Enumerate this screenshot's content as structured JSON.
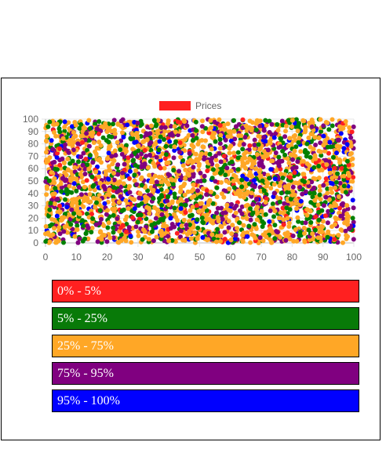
{
  "chart_data": {
    "type": "scatter",
    "title": "",
    "legend": {
      "label": "Prices",
      "color": "#ff2020",
      "position": "top"
    },
    "xlim": [
      0,
      100
    ],
    "ylim": [
      0,
      100
    ],
    "xticks": [
      "0",
      "10",
      "20",
      "30",
      "40",
      "50",
      "60",
      "70",
      "80",
      "90",
      "100"
    ],
    "yticks": [
      "0",
      "10",
      "20",
      "30",
      "40",
      "50",
      "60",
      "70",
      "80",
      "90",
      "100"
    ],
    "grid": true,
    "point_colors": [
      "#ff2020",
      "#008000",
      "#ffa726",
      "#800080",
      "#0000ff"
    ],
    "point_mix": [
      0.05,
      0.2,
      0.5,
      0.2,
      0.05
    ],
    "point_count_estimate": 3000,
    "x_distribution": "uniform",
    "y_distribution": "uniform"
  },
  "ranges": [
    {
      "label": "0% - 5%",
      "color": "#ff2020"
    },
    {
      "label": "5% - 25%",
      "color": "#087a08"
    },
    {
      "label": "25% - 75%",
      "color": "#ffa726"
    },
    {
      "label": "75% - 95%",
      "color": "#800080"
    },
    {
      "label": "95% - 100%",
      "color": "#0000ff"
    }
  ]
}
